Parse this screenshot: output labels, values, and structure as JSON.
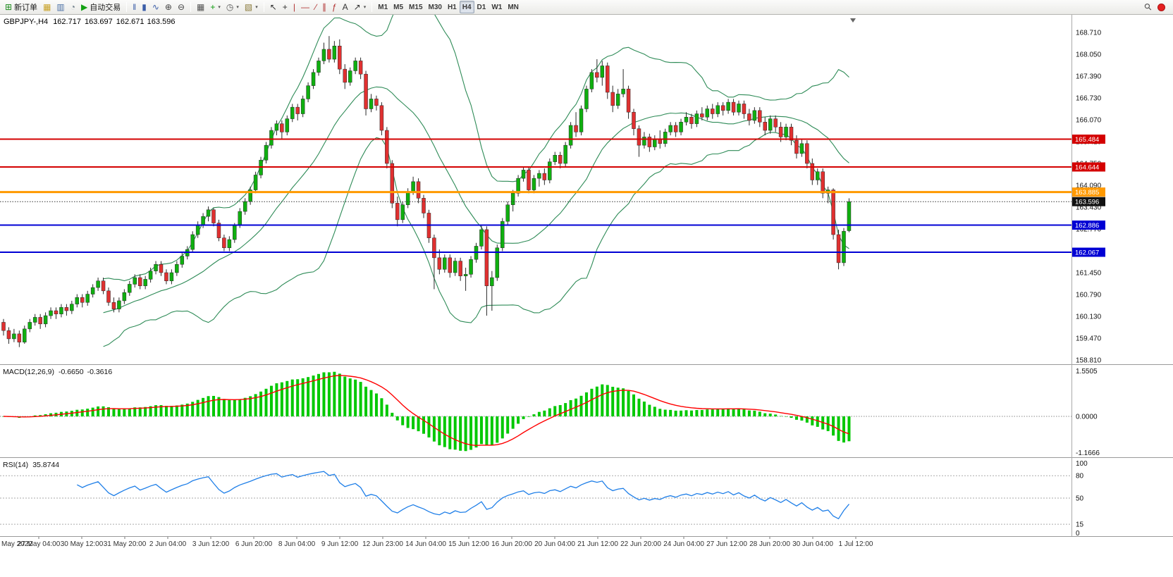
{
  "toolbar": {
    "groups": [
      {
        "items": [
          {
            "name": "new-order-button",
            "icon": "⊞",
            "icon_color": "#1c8a1c",
            "label": "新订单"
          },
          {
            "name": "new-chart-button",
            "icon": "▦",
            "icon_color": "#c9a227"
          },
          {
            "name": "market-watch-button",
            "icon": "▥",
            "icon_color": "#4a6fa5"
          },
          {
            "name": "strategy-tester-button",
            "icon": "◔",
            "icon_color": "#6a7a87"
          },
          {
            "name": "autotrading-button",
            "icon": "▶",
            "icon_color": "#12a112",
            "label": "自动交易"
          }
        ]
      },
      {
        "items": [
          {
            "name": "bar-chart-button",
            "icon": "‖",
            "icon_color": "#3a5da8"
          },
          {
            "name": "candlestick-chart-button",
            "icon": "▮",
            "icon_color": "#3a5da8"
          },
          {
            "name": "line-chart-button",
            "icon": "∿",
            "icon_color": "#3a5da8"
          },
          {
            "name": "zoom-in-button",
            "icon": "⊕",
            "icon_color": "#444444"
          },
          {
            "name": "zoom-out-button",
            "icon": "⊖",
            "icon_color": "#444444"
          }
        ]
      },
      {
        "items": [
          {
            "name": "tile-windows-button",
            "icon": "▦",
            "icon_color": "#555555"
          },
          {
            "name": "indicators-button",
            "icon": "+",
            "icon_color": "#0a9a0a",
            "caret": true
          },
          {
            "name": "periods-button",
            "icon": "◷",
            "icon_color": "#555555",
            "caret": true
          },
          {
            "name": "templates-button",
            "icon": "▧",
            "icon_color": "#8a7a3a",
            "caret": true
          }
        ]
      },
      {
        "items": [
          {
            "name": "cursor-button",
            "icon": "↖",
            "icon_color": "#333333"
          },
          {
            "name": "crosshair-button",
            "icon": "+",
            "icon_color": "#333333"
          },
          {
            "name": "vertical-line-button",
            "icon": "|",
            "icon_color": "#b03030"
          },
          {
            "name": "horizontal-line-button",
            "icon": "—",
            "icon_color": "#b03030"
          },
          {
            "name": "trendline-button",
            "icon": "∕",
            "icon_color": "#b03030"
          },
          {
            "name": "channel-button",
            "icon": "∥",
            "icon_color": "#b03030"
          },
          {
            "name": "fibonacci-button",
            "icon": "ƒ",
            "icon_color": "#b03030"
          },
          {
            "name": "text-button",
            "icon": "A",
            "icon_color": "#333333"
          },
          {
            "name": "arrows-button",
            "icon": "↗",
            "icon_color": "#333333",
            "caret": true
          }
        ]
      }
    ],
    "timeframes": [
      "M1",
      "M5",
      "M15",
      "M30",
      "H1",
      "H4",
      "D1",
      "W1",
      "MN"
    ],
    "active_timeframe": "H4",
    "right_icons": [
      {
        "name": "search-icon",
        "glyph": "⚲"
      },
      {
        "name": "notification-badge",
        "color": "#e62020"
      }
    ]
  },
  "chart_data": {
    "type": "candlestick",
    "symbol_period_label": "GBPJPY-,H4",
    "ohlc_display": {
      "open": "162.717",
      "high": "163.697",
      "low": "162.671",
      "close": "163.596"
    },
    "price_axis_labels": [
      "168.710",
      "168.050",
      "167.390",
      "166.730",
      "166.070",
      "165.410",
      "164.750",
      "164.090",
      "163.430",
      "162.770",
      "162.110",
      "161.450",
      "160.790",
      "160.130",
      "159.470",
      "158.810"
    ],
    "time_axis_labels": [
      "May 2022",
      "27 May 04:00",
      "30 May 12:00",
      "31 May 20:00",
      "2 Jun 04:00",
      "3 Jun 12:00",
      "6 Jun 20:00",
      "8 Jun 04:00",
      "9 Jun 12:00",
      "12 Jun 23:00",
      "14 Jun 04:00",
      "15 Jun 12:00",
      "16 Jun 20:00",
      "20 Jun 04:00",
      "21 Jun 12:00",
      "22 Jun 20:00",
      "24 Jun 04:00",
      "27 Jun 12:00",
      "28 Jun 20:00",
      "30 Jun 04:00",
      "1 Jul 12:00"
    ],
    "colors": {
      "up": "#0faf0f",
      "down": "#e03030",
      "wick": "#2a2a2a",
      "band": "#2e8b57",
      "separator": "#9a9a9a",
      "axis_text": "#111111",
      "time_text": "#333333"
    },
    "horizontal_levels": [
      {
        "price": 165.484,
        "label": "165.484",
        "color": "#d40000",
        "width": 2
      },
      {
        "price": 164.644,
        "label": "164.644",
        "color": "#d40000",
        "width": 2
      },
      {
        "price": 163.885,
        "label": "163.885",
        "color": "#ff9900",
        "width": 3
      },
      {
        "price": 162.886,
        "label": "162.886",
        "color": "#0000d4",
        "width": 2
      },
      {
        "price": 162.067,
        "label": "162.067",
        "color": "#0000d4",
        "width": 2
      }
    ],
    "current_price": {
      "price": 163.596,
      "label": "163.596",
      "color": "#111111"
    },
    "bollinger": {
      "period": 20,
      "deviation": 2
    },
    "macd": {
      "name": "MACD(12,26,9)",
      "fast": 12,
      "slow": 26,
      "signal": 9,
      "main_value": "-0.6650",
      "signal_value": "-0.3616",
      "axis_labels": {
        "top": "1.5505",
        "zero": "0.0000",
        "bottom": "-1.1666"
      },
      "histogram_color": "#00c800",
      "signal_color": "#ff0000"
    },
    "rsi": {
      "name": "RSI(14)",
      "period": 14,
      "value": "35.8744",
      "color": "#1f7fe8",
      "levels": [
        80,
        50,
        15
      ],
      "axis_labels": [
        [
          "100",
          100
        ],
        [
          "80",
          80
        ],
        [
          "50",
          50
        ],
        [
          "15",
          15
        ],
        [
          "0",
          0
        ]
      ]
    },
    "candles": [
      [
        159.95,
        160.05,
        159.55,
        159.7
      ],
      [
        159.7,
        159.8,
        159.3,
        159.45
      ],
      [
        159.45,
        159.75,
        159.35,
        159.6
      ],
      [
        159.6,
        159.7,
        159.2,
        159.35
      ],
      [
        159.35,
        159.85,
        159.3,
        159.75
      ],
      [
        159.75,
        160.05,
        159.65,
        159.95
      ],
      [
        159.95,
        160.2,
        159.85,
        160.1
      ],
      [
        160.1,
        160.2,
        159.75,
        159.9
      ],
      [
        159.9,
        160.25,
        159.8,
        160.15
      ],
      [
        160.15,
        160.4,
        160.05,
        160.3
      ],
      [
        160.3,
        160.4,
        160.05,
        160.2
      ],
      [
        160.2,
        160.5,
        160.1,
        160.4
      ],
      [
        160.4,
        160.5,
        160.15,
        160.3
      ],
      [
        160.3,
        160.6,
        160.2,
        160.5
      ],
      [
        160.5,
        160.8,
        160.4,
        160.7
      ],
      [
        160.7,
        160.8,
        160.4,
        160.55
      ],
      [
        160.55,
        160.9,
        160.45,
        160.8
      ],
      [
        160.8,
        161.1,
        160.7,
        161.0
      ],
      [
        161.0,
        161.3,
        160.9,
        161.2
      ],
      [
        161.2,
        161.3,
        160.8,
        160.9
      ],
      [
        160.9,
        161.0,
        160.45,
        160.55
      ],
      [
        160.55,
        160.7,
        160.25,
        160.35
      ],
      [
        160.35,
        160.7,
        160.25,
        160.6
      ],
      [
        160.6,
        160.95,
        160.5,
        160.85
      ],
      [
        160.85,
        161.2,
        160.75,
        161.1
      ],
      [
        161.1,
        161.4,
        161.0,
        161.3
      ],
      [
        161.3,
        161.4,
        160.95,
        161.05
      ],
      [
        161.05,
        161.35,
        160.95,
        161.25
      ],
      [
        161.25,
        161.6,
        161.15,
        161.5
      ],
      [
        161.5,
        161.8,
        161.4,
        161.7
      ],
      [
        161.7,
        161.8,
        161.35,
        161.45
      ],
      [
        161.45,
        161.55,
        161.1,
        161.2
      ],
      [
        161.2,
        161.55,
        161.1,
        161.45
      ],
      [
        161.45,
        161.8,
        161.35,
        161.7
      ],
      [
        161.7,
        162.05,
        161.6,
        161.95
      ],
      [
        161.95,
        162.25,
        161.85,
        162.15
      ],
      [
        162.15,
        162.7,
        162.05,
        162.6
      ],
      [
        162.6,
        163.0,
        162.5,
        162.9
      ],
      [
        162.9,
        163.25,
        162.8,
        163.15
      ],
      [
        163.15,
        163.45,
        163.0,
        163.35
      ],
      [
        163.35,
        163.4,
        162.85,
        162.95
      ],
      [
        162.95,
        163.05,
        162.4,
        162.5
      ],
      [
        162.5,
        162.6,
        162.1,
        162.2
      ],
      [
        162.2,
        162.55,
        162.1,
        162.45
      ],
      [
        162.45,
        162.95,
        162.35,
        162.9
      ],
      [
        162.9,
        163.4,
        162.8,
        163.3
      ],
      [
        163.3,
        163.7,
        163.2,
        163.6
      ],
      [
        163.6,
        164.05,
        163.5,
        163.95
      ],
      [
        163.95,
        164.5,
        163.85,
        164.4
      ],
      [
        164.4,
        164.95,
        164.3,
        164.85
      ],
      [
        164.85,
        165.4,
        164.75,
        165.3
      ],
      [
        165.3,
        165.85,
        165.2,
        165.75
      ],
      [
        165.75,
        166.05,
        165.6,
        165.95
      ],
      [
        165.95,
        166.05,
        165.5,
        165.7
      ],
      [
        165.7,
        166.2,
        165.6,
        166.1
      ],
      [
        166.1,
        166.55,
        166.0,
        166.45
      ],
      [
        166.45,
        166.55,
        166.05,
        166.25
      ],
      [
        166.25,
        166.8,
        166.15,
        166.7
      ],
      [
        166.7,
        167.2,
        166.6,
        167.1
      ],
      [
        167.1,
        167.6,
        167.0,
        167.5
      ],
      [
        167.5,
        167.95,
        167.4,
        167.85
      ],
      [
        167.85,
        168.4,
        167.75,
        168.2
      ],
      [
        168.2,
        168.6,
        167.8,
        167.9
      ],
      [
        167.9,
        168.45,
        167.8,
        168.3
      ],
      [
        168.3,
        168.5,
        167.45,
        167.6
      ],
      [
        167.6,
        167.75,
        167.0,
        167.2
      ],
      [
        167.2,
        167.65,
        167.1,
        167.55
      ],
      [
        167.55,
        167.95,
        167.45,
        167.85
      ],
      [
        167.85,
        167.95,
        167.3,
        167.45
      ],
      [
        167.45,
        167.55,
        166.2,
        166.4
      ],
      [
        166.4,
        166.85,
        166.3,
        166.7
      ],
      [
        166.7,
        166.8,
        166.35,
        166.5
      ],
      [
        166.5,
        166.6,
        165.6,
        165.75
      ],
      [
        165.75,
        165.85,
        164.6,
        164.75
      ],
      [
        164.75,
        164.85,
        163.4,
        163.55
      ],
      [
        163.55,
        163.75,
        162.85,
        163.05
      ],
      [
        163.05,
        163.6,
        162.95,
        163.5
      ],
      [
        163.5,
        164.0,
        163.4,
        163.9
      ],
      [
        163.9,
        164.35,
        163.8,
        164.2
      ],
      [
        164.2,
        164.3,
        163.55,
        163.7
      ],
      [
        163.7,
        163.8,
        163.1,
        163.25
      ],
      [
        163.25,
        163.35,
        162.35,
        162.5
      ],
      [
        162.5,
        162.6,
        160.95,
        161.9
      ],
      [
        161.9,
        162.15,
        161.4,
        161.55
      ],
      [
        161.55,
        162.0,
        161.45,
        161.9
      ],
      [
        161.9,
        162.0,
        161.3,
        161.45
      ],
      [
        161.45,
        161.9,
        161.35,
        161.8
      ],
      [
        161.8,
        161.9,
        161.2,
        161.35
      ],
      [
        161.35,
        161.6,
        160.9,
        161.4
      ],
      [
        161.4,
        161.95,
        161.3,
        161.85
      ],
      [
        161.85,
        162.35,
        161.75,
        162.25
      ],
      [
        162.25,
        162.9,
        162.15,
        162.75
      ],
      [
        162.75,
        162.85,
        160.15,
        161.05
      ],
      [
        161.05,
        161.5,
        160.3,
        161.3
      ],
      [
        161.3,
        162.3,
        161.2,
        162.2
      ],
      [
        162.2,
        163.1,
        162.1,
        163.0
      ],
      [
        163.0,
        163.6,
        162.9,
        163.5
      ],
      [
        163.5,
        163.95,
        163.3,
        163.85
      ],
      [
        163.85,
        164.4,
        163.75,
        164.3
      ],
      [
        164.3,
        164.65,
        164.2,
        164.55
      ],
      [
        164.55,
        164.65,
        163.85,
        163.95
      ],
      [
        163.95,
        164.4,
        163.85,
        164.3
      ],
      [
        164.3,
        164.55,
        164.05,
        164.45
      ],
      [
        164.45,
        164.6,
        164.1,
        164.25
      ],
      [
        164.25,
        164.9,
        164.15,
        164.8
      ],
      [
        164.8,
        165.1,
        164.7,
        165.0
      ],
      [
        165.0,
        165.1,
        164.6,
        164.75
      ],
      [
        164.75,
        165.4,
        164.65,
        165.3
      ],
      [
        165.3,
        166.0,
        165.2,
        165.9
      ],
      [
        165.9,
        166.3,
        165.55,
        165.7
      ],
      [
        165.7,
        166.5,
        165.6,
        166.4
      ],
      [
        166.4,
        167.1,
        166.3,
        167.0
      ],
      [
        167.0,
        167.6,
        166.9,
        167.5
      ],
      [
        167.5,
        167.9,
        167.2,
        167.35
      ],
      [
        167.35,
        167.85,
        167.1,
        167.7
      ],
      [
        167.7,
        167.8,
        166.7,
        166.9
      ],
      [
        166.9,
        167.1,
        166.3,
        166.5
      ],
      [
        166.5,
        167.0,
        166.4,
        166.85
      ],
      [
        166.85,
        167.6,
        166.75,
        167.0
      ],
      [
        167.0,
        167.1,
        166.1,
        166.3
      ],
      [
        166.3,
        166.4,
        165.6,
        165.8
      ],
      [
        165.8,
        165.9,
        164.95,
        165.3
      ],
      [
        165.3,
        165.7,
        165.2,
        165.55
      ],
      [
        165.55,
        165.65,
        165.1,
        165.25
      ],
      [
        165.25,
        165.6,
        165.15,
        165.5
      ],
      [
        165.5,
        165.75,
        165.2,
        165.35
      ],
      [
        165.35,
        165.8,
        165.25,
        165.7
      ],
      [
        165.7,
        166.0,
        165.6,
        165.9
      ],
      [
        165.9,
        166.0,
        165.55,
        165.7
      ],
      [
        165.7,
        166.1,
        165.6,
        166.0
      ],
      [
        166.0,
        166.3,
        165.9,
        166.15
      ],
      [
        166.15,
        166.25,
        165.8,
        165.95
      ],
      [
        165.95,
        166.35,
        165.85,
        166.25
      ],
      [
        166.25,
        166.45,
        166.05,
        166.15
      ],
      [
        166.15,
        166.5,
        166.05,
        166.4
      ],
      [
        166.4,
        166.55,
        166.1,
        166.25
      ],
      [
        166.25,
        166.6,
        166.15,
        166.5
      ],
      [
        166.5,
        166.6,
        166.2,
        166.35
      ],
      [
        166.35,
        166.7,
        166.25,
        166.6
      ],
      [
        166.6,
        166.7,
        166.2,
        166.3
      ],
      [
        166.3,
        166.65,
        166.2,
        166.55
      ],
      [
        166.55,
        166.65,
        166.1,
        166.25
      ],
      [
        166.25,
        166.4,
        165.9,
        166.05
      ],
      [
        166.05,
        166.45,
        165.95,
        166.35
      ],
      [
        166.35,
        166.45,
        165.85,
        166.0
      ],
      [
        166.0,
        166.15,
        165.6,
        165.75
      ],
      [
        165.75,
        166.2,
        165.65,
        166.1
      ],
      [
        166.1,
        166.2,
        165.7,
        165.85
      ],
      [
        165.85,
        166.0,
        165.4,
        165.55
      ],
      [
        165.55,
        165.95,
        165.45,
        165.85
      ],
      [
        165.85,
        165.95,
        165.3,
        165.45
      ],
      [
        165.45,
        165.6,
        164.9,
        165.05
      ],
      [
        165.05,
        165.5,
        164.95,
        165.35
      ],
      [
        165.35,
        165.45,
        164.6,
        164.75
      ],
      [
        164.75,
        164.9,
        164.1,
        164.25
      ],
      [
        164.25,
        164.6,
        164.1,
        164.5
      ],
      [
        164.5,
        164.6,
        163.7,
        163.85
      ],
      [
        163.85,
        164.05,
        163.55,
        163.95
      ],
      [
        163.95,
        164.0,
        162.45,
        162.6
      ],
      [
        162.6,
        162.75,
        161.55,
        161.75
      ],
      [
        161.75,
        162.8,
        161.65,
        162.7
      ],
      [
        162.717,
        163.697,
        162.671,
        163.596
      ]
    ]
  }
}
